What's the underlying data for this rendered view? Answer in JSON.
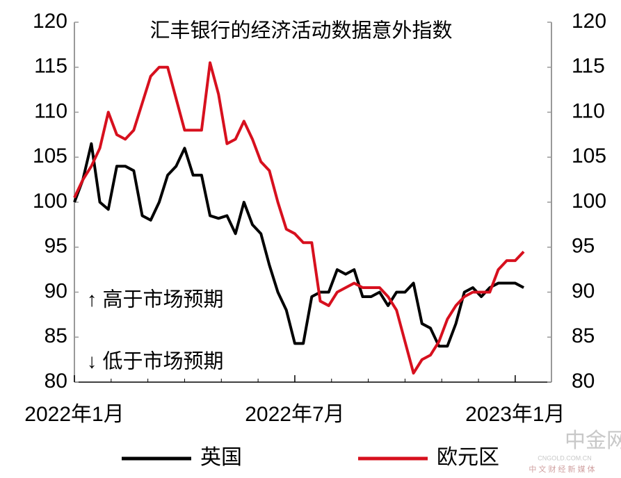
{
  "chart_data": {
    "type": "line",
    "title": "汇丰银行的经济活动数据意外指数",
    "annotations": [
      "↑ 高于市场预期",
      "↓ 低于市场预期"
    ],
    "watermark": [
      "中金网",
      "CNGOLD.COM.CN",
      "中 文 财 经 新 媒 体"
    ],
    "categories": [
      "2022年1月",
      null,
      null,
      null,
      null,
      null,
      null,
      null,
      null,
      null,
      null,
      null,
      null,
      null,
      null,
      null,
      null,
      null,
      null,
      null,
      null,
      null,
      null,
      null,
      null,
      null,
      "2022年7月",
      null,
      null,
      null,
      null,
      null,
      null,
      null,
      null,
      null,
      null,
      null,
      null,
      null,
      null,
      null,
      null,
      null,
      null,
      null,
      null,
      null,
      null,
      null,
      null,
      null,
      "2023年1月",
      null
    ],
    "series": [
      {
        "name": "英国",
        "color": "#000000",
        "values": [
          100,
          102.5,
          106.5,
          100,
          99.2,
          104,
          104,
          103.5,
          98.5,
          98,
          100,
          103,
          104,
          106,
          103,
          103,
          98.5,
          98.2,
          98.5,
          96.5,
          100,
          97.5,
          96.5,
          93,
          90,
          88,
          84.3,
          84.3,
          89.5,
          90,
          90,
          92.5,
          92,
          92.5,
          89.5,
          89.5,
          90,
          88.5,
          90,
          90,
          91,
          86.5,
          86,
          84,
          84,
          86.5,
          90,
          90.5,
          89.5,
          90.5,
          91,
          91,
          91,
          90.5
        ]
      },
      {
        "name": "欧元区",
        "color": "#d7101e",
        "values": [
          100.5,
          102.5,
          104,
          106,
          110,
          107.5,
          107,
          108,
          111,
          114,
          115,
          115,
          111.5,
          108,
          108,
          108,
          115.5,
          112,
          106.5,
          107,
          109,
          107,
          104.5,
          103.5,
          100,
          97,
          96.5,
          95.5,
          95.5,
          89,
          88.5,
          90,
          90.5,
          91,
          90.5,
          90.5,
          90.5,
          89.5,
          88,
          84.5,
          81,
          82.5,
          83,
          84.5,
          87,
          88.5,
          89.5,
          90,
          90,
          90,
          92.5,
          93.5,
          93.5,
          94.5
        ]
      }
    ],
    "ylim": [
      80,
      120
    ],
    "yticks": [
      80,
      85,
      90,
      95,
      100,
      105,
      110,
      115,
      120
    ],
    "y2lim": [
      80,
      120
    ],
    "y2ticks": [
      80,
      85,
      90,
      95,
      100,
      105,
      110,
      115,
      120
    ]
  }
}
